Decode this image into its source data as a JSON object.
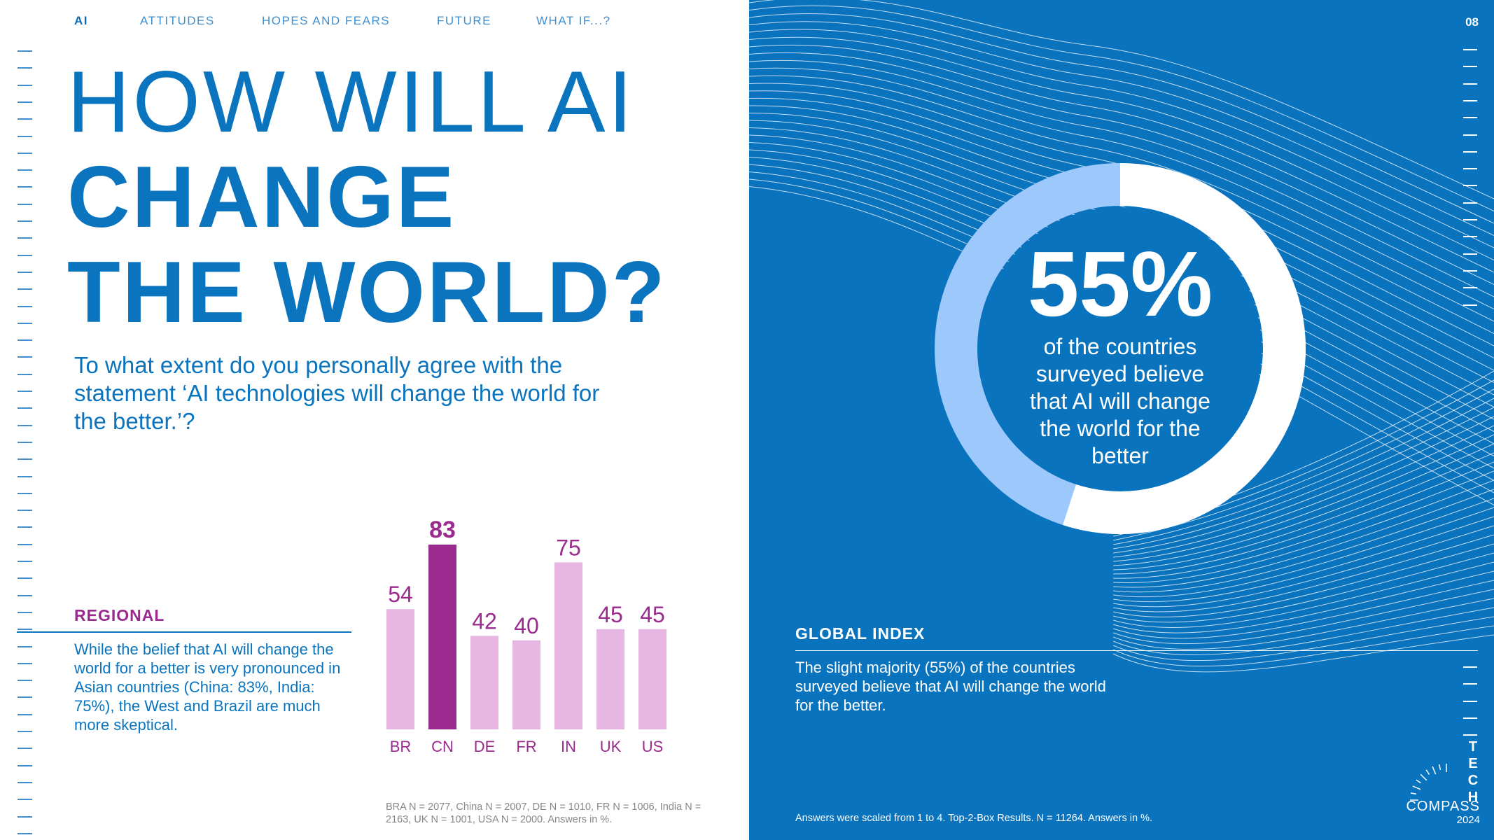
{
  "nav": {
    "items": [
      "AI",
      "ATTITUDES",
      "HOPES AND FEARS",
      "FUTURE",
      "WHAT IF...?"
    ],
    "active": "AI"
  },
  "page_number": "08",
  "title": {
    "line1": "HOW WILL AI",
    "line2": "CHANGE",
    "line3": "THE WORLD?"
  },
  "question": "To what extent do you personally agree with the statement ‘AI technologies will change the world for the better.’?",
  "regional": {
    "heading": "REGIONAL",
    "body": "While the belief that AI will change the world for a better is very pronounced in Asian countries (China: 83%, India: 75%), the West and Brazil are much more skeptical."
  },
  "chart_data": [
    {
      "type": "bar",
      "categories": [
        "BR",
        "CN",
        "DE",
        "FR",
        "IN",
        "UK",
        "US"
      ],
      "values": [
        54,
        83,
        42,
        40,
        75,
        45,
        45
      ],
      "highlight": "CN",
      "colors": {
        "bar": "#e7b6e3",
        "highlight": "#9a2a8e",
        "label": "#9a2a8e"
      },
      "footnote": "BRA N = 2077, China N = 2007, DE N = 1010, FR N = 1006, India N = 2163, UK N = 1001, USA N = 2000. Answers in %."
    },
    {
      "type": "pie",
      "variant": "donut",
      "values": [
        55,
        45
      ],
      "headline": "55%",
      "label": "of the countries surveyed believe that AI will change the world for the better",
      "colors": {
        "filled": "#ffffff",
        "rest": "#9dc8fb"
      }
    }
  ],
  "global_index": {
    "heading": "GLOBAL INDEX",
    "body": "The slight majority (55%) of the countries surveyed believe that AI will change the world for the better.",
    "footnote": "Answers were scaled from 1 to 4. Top-2-Box Results. N = 11264. Answers in %."
  },
  "logo": {
    "letters": [
      "T",
      "E",
      "C",
      "H"
    ],
    "word": "COMPASS",
    "year": "2024"
  },
  "colors": {
    "brand_blue": "#0a73bd",
    "accent_purple": "#9a2a8e",
    "light_purple": "#e7b6e3",
    "light_blue": "#9dc8fb"
  }
}
